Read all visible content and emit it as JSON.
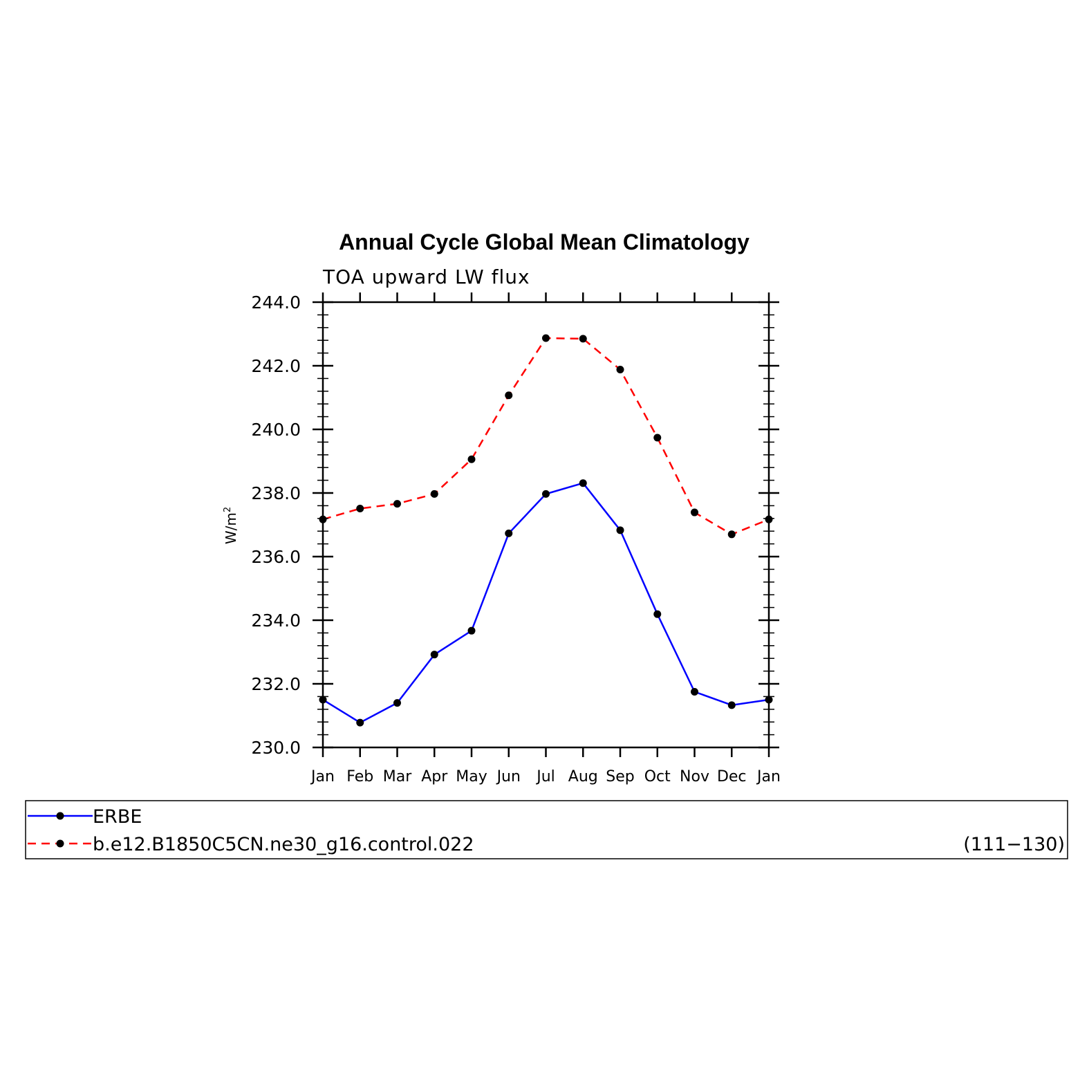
{
  "chart_data": {
    "type": "line",
    "title": "Annual Cycle Global Mean Climatology",
    "subtitle": "TOA upward LW flux",
    "ylabel": "W/m²",
    "ylabel_base": "W/m",
    "ylabel_sup": "2",
    "categories": [
      "Jan",
      "Feb",
      "Mar",
      "Apr",
      "May",
      "Jun",
      "Jul",
      "Aug",
      "Sep",
      "Oct",
      "Nov",
      "Dec",
      "Jan"
    ],
    "ylim": [
      230.0,
      244.0
    ],
    "yticks": [
      "230.0",
      "232.0",
      "234.0",
      "236.0",
      "238.0",
      "240.0",
      "242.0",
      "244.0"
    ],
    "series": [
      {
        "name": "ERBE",
        "color": "#0000ff",
        "dash": "solid",
        "marker": "circle",
        "values": [
          231.5,
          230.78,
          231.4,
          232.92,
          233.67,
          236.73,
          237.97,
          238.31,
          236.83,
          234.19,
          231.75,
          231.33,
          231.5
        ]
      },
      {
        "name": "b.e12.B1850C5CN.ne30_g16.control.022",
        "color": "#ff0000",
        "dash": "dashed",
        "marker": "circle",
        "values": [
          237.17,
          237.51,
          237.66,
          237.97,
          239.06,
          241.07,
          242.87,
          242.85,
          241.88,
          239.74,
          237.39,
          236.7,
          237.17
        ]
      }
    ],
    "legend_years": "(111−130)",
    "grid": false
  }
}
